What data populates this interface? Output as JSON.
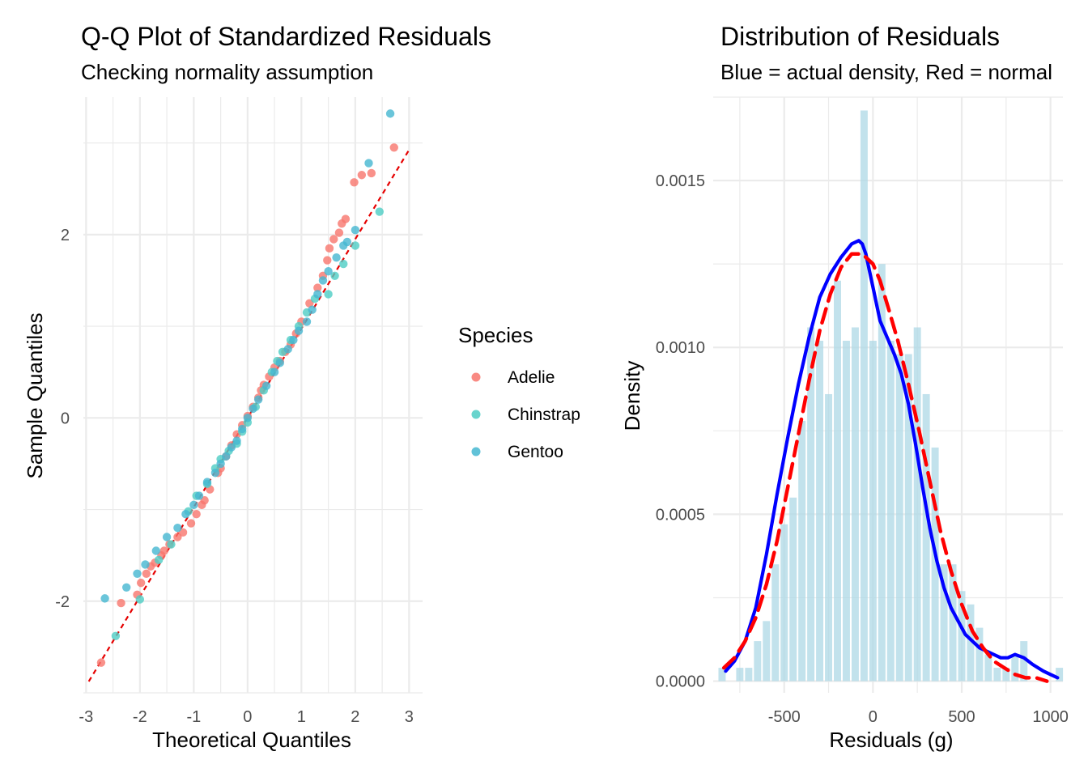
{
  "colors": {
    "adelie": "#F8766D",
    "chinstrap": "#4ECDC4",
    "gentoo": "#45B7D1",
    "ref_line": "#E60000",
    "histogram": "#ADD8E6",
    "density_actual": "#0000FF",
    "density_normal": "#FF0000",
    "grid": "#EBEBEB"
  },
  "chart_data": [
    {
      "type": "scatter",
      "title": "Q-Q Plot of Standardized Residuals",
      "subtitle": "Checking normality assumption",
      "xlabel": "Theoretical Quantiles",
      "ylabel": "Sample Quantiles",
      "xlim": [
        -3.05,
        3.25
      ],
      "ylim": [
        -3.0,
        3.5
      ],
      "xticks": [
        -3,
        -2,
        -1,
        0,
        1,
        2,
        3
      ],
      "xtick_labels": [
        "-3",
        "-2",
        "-1",
        "0",
        "1",
        "2",
        "3"
      ],
      "yticks": [
        -2,
        0,
        2
      ],
      "ytick_labels": [
        "-2",
        "0",
        "2"
      ],
      "grid": true,
      "legend": {
        "title": "Species",
        "position": "right",
        "items": [
          "Adelie",
          "Chinstrap",
          "Gentoo"
        ]
      },
      "reference_line": {
        "intercept": 0.0,
        "slope": 0.975,
        "style": "dashed"
      },
      "series": [
        {
          "name": "Adelie",
          "points": [
            [
              -2.72,
              -2.67
            ],
            [
              -2.35,
              -2.02
            ],
            [
              -2.05,
              -1.93
            ],
            [
              -1.98,
              -1.8
            ],
            [
              -1.88,
              -1.7
            ],
            [
              -1.8,
              -1.62
            ],
            [
              -1.72,
              -1.58
            ],
            [
              -1.6,
              -1.5
            ],
            [
              -1.55,
              -1.45
            ],
            [
              -1.45,
              -1.38
            ],
            [
              -1.3,
              -1.3
            ],
            [
              -1.2,
              -1.25
            ],
            [
              -1.05,
              -1.15
            ],
            [
              -0.95,
              -1.05
            ],
            [
              -0.85,
              -0.95
            ],
            [
              -0.8,
              -0.9
            ],
            [
              -0.7,
              -0.78
            ],
            [
              -0.55,
              -0.6
            ],
            [
              -0.5,
              -0.55
            ],
            [
              -0.4,
              -0.42
            ],
            [
              -0.3,
              -0.3
            ],
            [
              -0.2,
              -0.18
            ],
            [
              -0.1,
              -0.08
            ],
            [
              0.0,
              0.02
            ],
            [
              0.1,
              0.12
            ],
            [
              0.2,
              0.22
            ],
            [
              0.25,
              0.3
            ],
            [
              0.3,
              0.36
            ],
            [
              0.4,
              0.45
            ],
            [
              0.5,
              0.55
            ],
            [
              0.6,
              0.62
            ],
            [
              0.7,
              0.72
            ],
            [
              0.8,
              0.8
            ],
            [
              0.9,
              0.92
            ],
            [
              1.0,
              1.05
            ],
            [
              1.15,
              1.25
            ],
            [
              1.3,
              1.42
            ],
            [
              1.4,
              1.55
            ],
            [
              1.48,
              1.72
            ],
            [
              1.52,
              1.85
            ],
            [
              1.6,
              1.95
            ],
            [
              1.7,
              2.02
            ],
            [
              1.75,
              2.12
            ],
            [
              1.82,
              2.17
            ],
            [
              1.98,
              2.57
            ],
            [
              2.12,
              2.65
            ],
            [
              2.3,
              2.67
            ],
            [
              2.72,
              2.95
            ]
          ]
        },
        {
          "name": "Chinstrap",
          "points": [
            [
              -2.45,
              -2.38
            ],
            [
              -2.0,
              -1.98
            ],
            [
              -1.65,
              -1.55
            ],
            [
              -1.42,
              -1.38
            ],
            [
              -1.1,
              -1.02
            ],
            [
              -0.95,
              -0.85
            ],
            [
              -0.75,
              -0.72
            ],
            [
              -0.6,
              -0.55
            ],
            [
              -0.5,
              -0.45
            ],
            [
              -0.35,
              -0.36
            ],
            [
              -0.2,
              -0.28
            ],
            [
              -0.1,
              -0.15
            ],
            [
              0.0,
              -0.05
            ],
            [
              0.15,
              0.12
            ],
            [
              0.3,
              0.3
            ],
            [
              0.45,
              0.5
            ],
            [
              0.55,
              0.62
            ],
            [
              0.65,
              0.72
            ],
            [
              0.8,
              0.85
            ],
            [
              0.95,
              1.0
            ],
            [
              1.1,
              1.15
            ],
            [
              1.25,
              1.3
            ],
            [
              1.5,
              1.35
            ],
            [
              1.62,
              1.55
            ],
            [
              1.78,
              1.68
            ],
            [
              2.0,
              1.88
            ],
            [
              2.45,
              2.25
            ]
          ]
        },
        {
          "name": "Gentoo",
          "points": [
            [
              -2.65,
              -1.97
            ],
            [
              -2.25,
              -1.85
            ],
            [
              -2.05,
              -1.7
            ],
            [
              -1.9,
              -1.6
            ],
            [
              -1.7,
              -1.45
            ],
            [
              -1.5,
              -1.3
            ],
            [
              -1.3,
              -1.2
            ],
            [
              -1.15,
              -1.05
            ],
            [
              -1.0,
              -0.95
            ],
            [
              -0.9,
              -0.85
            ],
            [
              -0.75,
              -0.7
            ],
            [
              -0.6,
              -0.6
            ],
            [
              -0.5,
              -0.5
            ],
            [
              -0.4,
              -0.42
            ],
            [
              -0.3,
              -0.32
            ],
            [
              -0.2,
              -0.25
            ],
            [
              -0.1,
              -0.12
            ],
            [
              0.0,
              0.0
            ],
            [
              0.1,
              0.1
            ],
            [
              0.2,
              0.2
            ],
            [
              0.35,
              0.35
            ],
            [
              0.5,
              0.5
            ],
            [
              0.6,
              0.6
            ],
            [
              0.75,
              0.75
            ],
            [
              0.85,
              0.85
            ],
            [
              0.95,
              0.95
            ],
            [
              1.1,
              1.05
            ],
            [
              1.2,
              1.18
            ],
            [
              1.3,
              1.35
            ],
            [
              1.4,
              1.5
            ],
            [
              1.5,
              1.6
            ],
            [
              1.65,
              1.75
            ],
            [
              1.78,
              1.88
            ],
            [
              1.85,
              1.92
            ],
            [
              2.0,
              2.05
            ],
            [
              2.25,
              2.78
            ],
            [
              2.65,
              3.32
            ]
          ]
        }
      ]
    },
    {
      "type": "bar",
      "title": "Distribution of Residuals",
      "subtitle": "Blue = actual density, Red = normal",
      "xlabel": "Residuals (g)",
      "ylabel": "Density",
      "xlim": [
        -900,
        1070
      ],
      "ylim": [
        -3.5e-05,
        0.00175
      ],
      "xticks": [
        -500,
        0,
        500,
        1000
      ],
      "xtick_labels": [
        "-500",
        "0",
        "500",
        "1000"
      ],
      "yticks": [
        0,
        0.0005,
        0.001,
        0.0015
      ],
      "ytick_labels": [
        "0.0000",
        "0.0005",
        "0.0010",
        "0.0015"
      ],
      "grid": true,
      "bin_width": 50,
      "bins": [
        {
          "x": -850,
          "density": 4e-05
        },
        {
          "x": -800,
          "density": 0.0
        },
        {
          "x": -750,
          "density": 4e-05
        },
        {
          "x": -700,
          "density": 4e-05
        },
        {
          "x": -650,
          "density": 0.00012
        },
        {
          "x": -600,
          "density": 0.00018
        },
        {
          "x": -550,
          "density": 0.00035
        },
        {
          "x": -500,
          "density": 0.00047
        },
        {
          "x": -450,
          "density": 0.00055
        },
        {
          "x": -400,
          "density": 0.00078
        },
        {
          "x": -350,
          "density": 0.00106
        },
        {
          "x": -300,
          "density": 0.00102
        },
        {
          "x": -250,
          "density": 0.00086
        },
        {
          "x": -200,
          "density": 0.0012
        },
        {
          "x": -150,
          "density": 0.00102
        },
        {
          "x": -100,
          "density": 0.00106
        },
        {
          "x": -50,
          "density": 0.00171
        },
        {
          "x": 0,
          "density": 0.00102
        },
        {
          "x": 50,
          "density": 0.00125
        },
        {
          "x": 100,
          "density": 0.00102
        },
        {
          "x": 150,
          "density": 0.00098
        },
        {
          "x": 200,
          "density": 0.00098
        },
        {
          "x": 250,
          "density": 0.00106
        },
        {
          "x": 300,
          "density": 0.00086
        },
        {
          "x": 350,
          "density": 0.0007
        },
        {
          "x": 400,
          "density": 0.00035
        },
        {
          "x": 450,
          "density": 0.00035
        },
        {
          "x": 500,
          "density": 0.00027
        },
        {
          "x": 550,
          "density": 0.00023
        },
        {
          "x": 600,
          "density": 0.00016
        },
        {
          "x": 650,
          "density": 8e-05
        },
        {
          "x": 700,
          "density": 4e-05
        },
        {
          "x": 750,
          "density": 4e-05
        },
        {
          "x": 800,
          "density": 8e-05
        },
        {
          "x": 850,
          "density": 0.00012
        },
        {
          "x": 900,
          "density": 0.0
        },
        {
          "x": 950,
          "density": 0.0
        },
        {
          "x": 1000,
          "density": 0.0
        },
        {
          "x": 1050,
          "density": 4e-05
        }
      ],
      "lines": [
        {
          "name": "actual density",
          "style": "solid",
          "x": [
            -830,
            -780,
            -720,
            -660,
            -600,
            -540,
            -480,
            -420,
            -360,
            -300,
            -240,
            -180,
            -120,
            -80,
            -60,
            -40,
            0,
            40,
            80,
            120,
            160,
            200,
            240,
            280,
            320,
            360,
            400,
            440,
            480,
            520,
            560,
            600,
            640,
            680,
            720,
            760,
            800,
            850,
            900,
            960,
            1000,
            1040
          ],
          "y": [
            3e-05,
            6e-05,
            0.00012,
            0.00022,
            0.00038,
            0.00056,
            0.00073,
            0.00089,
            0.00103,
            0.00115,
            0.00122,
            0.00127,
            0.00131,
            0.00132,
            0.00131,
            0.00128,
            0.00118,
            0.00108,
            0.00103,
            0.00098,
            0.00092,
            0.00083,
            0.00071,
            0.00058,
            0.00046,
            0.00036,
            0.00028,
            0.00022,
            0.00018,
            0.00014,
            0.00012,
            0.0001,
            9e-05,
            8e-05,
            7e-05,
            7e-05,
            8e-05,
            7e-05,
            5e-05,
            3e-05,
            2e-05,
            1e-05
          ]
        },
        {
          "name": "normal",
          "style": "dashed",
          "x": [
            -840,
            -780,
            -720,
            -660,
            -600,
            -540,
            -480,
            -420,
            -360,
            -300,
            -240,
            -180,
            -120,
            -60,
            0,
            40,
            80,
            140,
            200,
            260,
            320,
            380,
            440,
            500,
            560,
            620,
            680,
            740,
            800,
            860,
            920,
            980
          ],
          "y": [
            4e-05,
            7e-05,
            0.00012,
            0.00019,
            0.00029,
            0.00042,
            0.00058,
            0.00074,
            0.0009,
            0.00105,
            0.00116,
            0.00124,
            0.00128,
            0.00128,
            0.00125,
            0.0012,
            0.00113,
            0.00102,
            0.00089,
            0.00075,
            0.0006,
            0.00045,
            0.00033,
            0.00023,
            0.00015,
            0.0001,
            6e-05,
            4e-05,
            2e-05,
            1e-05,
            1e-05,
            0.0
          ]
        }
      ]
    }
  ]
}
